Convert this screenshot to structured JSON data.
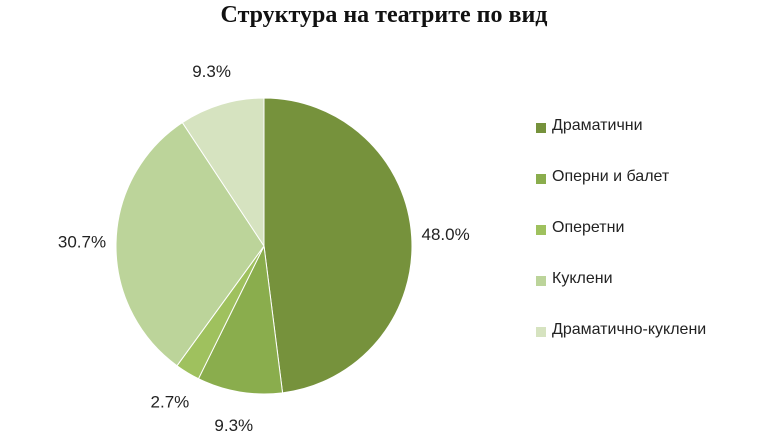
{
  "chart_data": {
    "type": "pie",
    "title": "Структура на театрите по вид",
    "categories": [
      "Драматични",
      "Оперни и балет",
      "Оперетни",
      "Куклени",
      "Драматично-куклени"
    ],
    "values": [
      48.0,
      9.3,
      2.7,
      30.7,
      9.3
    ],
    "value_labels": [
      "48.0%",
      "9.3%",
      "2.7%",
      "30.7%",
      "9.3%"
    ],
    "colors": [
      "#76923c",
      "#8aad4d",
      "#9fc15e",
      "#bcd49a",
      "#d6e3c0"
    ],
    "start_angle": "12 o'clock, clockwise",
    "legend": "right"
  }
}
